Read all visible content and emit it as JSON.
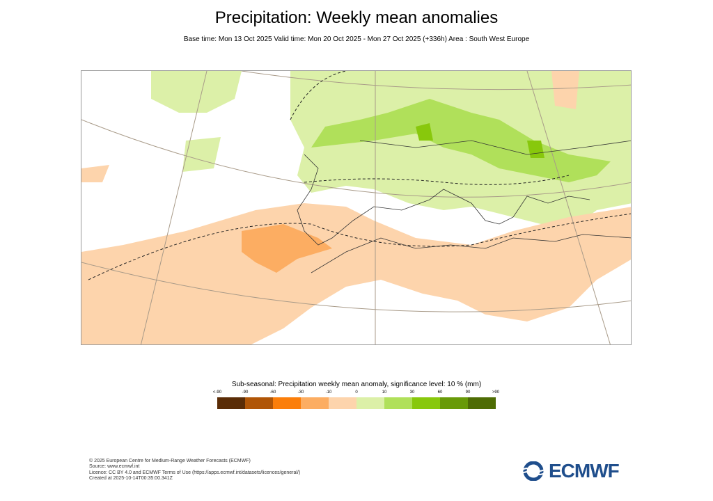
{
  "title": "Precipitation: Weekly mean anomalies",
  "subtitle": "Base time: Mon 13 Oct 2025 Valid time: Mon 20 Oct 2025 - Mon 27 Oct 2025 (+336h) Area : South West Europe",
  "legend": {
    "title": "Sub-seasonal: Precipitation weekly mean anomaly, significance level: 10 % (mm)",
    "ticks": [
      "<-90",
      "-90",
      "-60",
      "-30",
      "-10",
      "0",
      "10",
      "30",
      "60",
      "90",
      ">90"
    ],
    "colors": [
      "#5a2c06",
      "#b05506",
      "#fb7e0a",
      "#fcad62",
      "#fdd4ac",
      "#dcf0a8",
      "#b0e05a",
      "#88c80c",
      "#689a08",
      "#4e6c04"
    ]
  },
  "footer": {
    "lines": [
      "© 2025 European Centre for Medium-Range Weather Forecasts (ECMWF)",
      "Source: www.ecmwf.int",
      "Licence: CC BY 4.0 and ECMWF Terms of Use (https://apps.ecmwf.int/datasets/licences/general/)",
      "Created at 2025-10-14T00:35:00.341Z"
    ]
  },
  "logo": {
    "text": "ECMWF",
    "color": "#1f4e8c"
  }
}
